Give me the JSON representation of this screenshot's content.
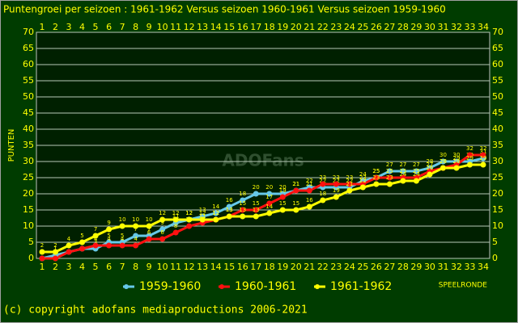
{
  "chart_data": {
    "type": "line",
    "title": "Puntengroei per seizoen : 1961-1962 Versus seizoen 1960-1961 Versus seizoen 1959-1960",
    "y_label": "PUNTEN",
    "x_label": "SPEELRONDE",
    "footer": "(c) copyright adofans mediaproductions 2006-2021",
    "watermark": "ADOFans",
    "categories": [
      "1",
      "2",
      "3",
      "4",
      "5",
      "6",
      "7",
      "8",
      "9",
      "10",
      "11",
      "12",
      "13",
      "14",
      "15",
      "16",
      "17",
      "18",
      "19",
      "20",
      "21",
      "22",
      "23",
      "24",
      "25",
      "26",
      "27",
      "28",
      "29",
      "30",
      "31",
      "32",
      "33",
      "34"
    ],
    "series": [
      {
        "name": "1959-1960",
        "color": "#66c8e8",
        "values": [
          0,
          1,
          2,
          3,
          3,
          5,
          5,
          7,
          7,
          9,
          11,
          12,
          13,
          14,
          16,
          18,
          20,
          20,
          20,
          21,
          22,
          22,
          22,
          22,
          24,
          25,
          27,
          27,
          27,
          28,
          30,
          30,
          30,
          31
        ]
      },
      {
        "name": "1960-1961",
        "color": "#ff1010",
        "values": [
          0,
          0,
          2,
          3,
          4,
          4,
          4,
          4,
          6,
          6,
          8,
          10,
          11,
          12,
          13,
          15,
          15,
          17,
          19,
          21,
          21,
          23,
          23,
          23,
          23,
          25,
          25,
          25,
          25,
          27,
          28,
          29,
          32,
          32
        ]
      },
      {
        "name": "1961-1962",
        "color": "#ffff00",
        "values": [
          2,
          2,
          4,
          5,
          7,
          9,
          10,
          10,
          10,
          12,
          12,
          12,
          12,
          12,
          13,
          13,
          13,
          14,
          15,
          15,
          16,
          18,
          19,
          21,
          22,
          23,
          23,
          24,
          24,
          26,
          28,
          28,
          29,
          29
        ]
      }
    ],
    "ylim": [
      0,
      70
    ],
    "yticks": [
      0,
      5,
      10,
      15,
      20,
      25,
      30,
      35,
      40,
      45,
      50,
      55,
      60,
      65,
      70
    ],
    "grid": true
  }
}
